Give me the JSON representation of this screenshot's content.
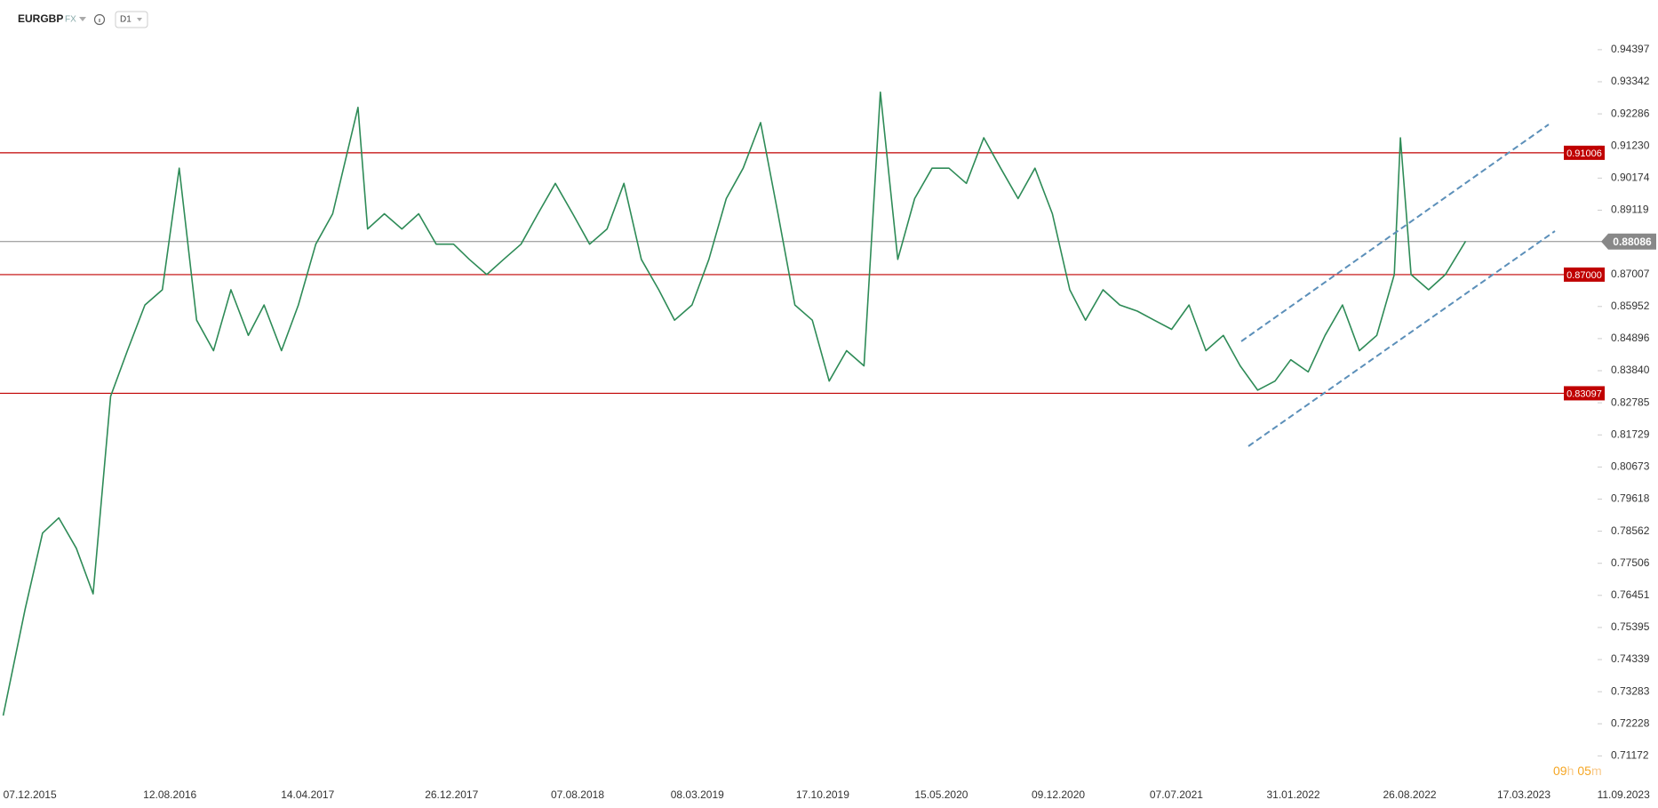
{
  "header": {
    "symbol": "EURGBP",
    "market": "FX",
    "interval": "D1"
  },
  "countdown": {
    "hours": "09",
    "hours_unit": "h",
    "minutes": "05",
    "minutes_unit": "m"
  },
  "chart_data": {
    "type": "line",
    "color": "#2e8b57",
    "x": [
      "07.12.2015",
      "15.01.2016",
      "15.02.2016",
      "15.03.2016",
      "15.04.2016",
      "15.05.2016",
      "15.06.2016",
      "15.07.2016",
      "15.08.2016",
      "15.09.2016",
      "15.10.2016",
      "15.11.2016",
      "15.12.2016",
      "15.01.2017",
      "15.02.2017",
      "15.03.2017",
      "15.04.2017",
      "15.05.2017",
      "15.06.2017",
      "15.07.2017",
      "29.08.2017",
      "15.09.2017",
      "15.10.2017",
      "15.11.2017",
      "15.12.2017",
      "15.01.2018",
      "15.02.2018",
      "15.03.2018",
      "15.04.2018",
      "15.05.2018",
      "15.06.2018",
      "15.07.2018",
      "15.08.2018",
      "15.09.2018",
      "15.10.2018",
      "15.11.2018",
      "15.12.2018",
      "15.01.2019",
      "15.02.2019",
      "15.03.2019",
      "15.04.2019",
      "15.05.2019",
      "15.06.2019",
      "15.07.2019",
      "15.08.2019",
      "15.09.2019",
      "15.10.2019",
      "15.11.2019",
      "15.12.2019",
      "15.01.2020",
      "15.02.2020",
      "15.03.2020",
      "15.04.2020",
      "15.05.2020",
      "15.06.2020",
      "15.07.2020",
      "15.08.2020",
      "15.09.2020",
      "15.10.2020",
      "15.11.2020",
      "15.12.2020",
      "15.01.2021",
      "15.02.2021",
      "15.03.2021",
      "15.04.2021",
      "15.05.2021",
      "15.06.2021",
      "15.07.2021",
      "15.08.2021",
      "15.09.2021",
      "15.10.2021",
      "15.11.2021",
      "15.12.2021",
      "15.01.2022",
      "15.02.2022",
      "15.03.2022",
      "15.04.2022",
      "15.05.2022",
      "15.06.2022",
      "15.07.2022",
      "15.08.2022",
      "15.09.2022",
      "26.09.2022",
      "15.10.2022",
      "15.11.2022",
      "15.12.2022",
      "20.01.2023"
    ],
    "values": [
      0.725,
      0.76,
      0.785,
      0.79,
      0.78,
      0.765,
      0.83,
      0.845,
      0.86,
      0.865,
      0.905,
      0.855,
      0.845,
      0.865,
      0.85,
      0.86,
      0.845,
      0.86,
      0.88,
      0.89,
      0.925,
      0.885,
      0.89,
      0.885,
      0.89,
      0.88,
      0.88,
      0.875,
      0.87,
      0.875,
      0.88,
      0.89,
      0.9,
      0.89,
      0.88,
      0.885,
      0.9,
      0.875,
      0.865,
      0.855,
      0.86,
      0.875,
      0.895,
      0.905,
      0.92,
      0.89,
      0.86,
      0.855,
      0.835,
      0.845,
      0.84,
      0.93,
      0.875,
      0.895,
      0.905,
      0.905,
      0.9,
      0.915,
      0.905,
      0.895,
      0.905,
      0.89,
      0.865,
      0.855,
      0.865,
      0.86,
      0.858,
      0.855,
      0.852,
      0.86,
      0.845,
      0.85,
      0.84,
      0.832,
      0.835,
      0.842,
      0.838,
      0.85,
      0.86,
      0.845,
      0.85,
      0.87,
      0.915,
      0.87,
      0.865,
      0.87,
      0.881
    ],
    "ylim": [
      0.7054,
      0.953
    ],
    "yticks": [
      0.94397,
      0.93342,
      0.92286,
      {
        "value": 0.9123,
        "label": "0.91230"
      },
      0.90174,
      0.89119,
      0.87007,
      0.85952,
      0.84896,
      {
        "value": 0.8384,
        "label": "0.83840"
      },
      0.82785,
      0.81729,
      0.80673,
      0.79618,
      0.78562,
      0.77506,
      0.76451,
      0.75395,
      0.74339,
      0.73283,
      0.72228,
      0.71172
    ],
    "xticks": [
      "07.12.2015",
      "12.08.2016",
      "14.04.2017",
      "26.12.2017",
      "07.08.2018",
      "08.03.2019",
      "17.10.2019",
      "15.05.2020",
      "09.12.2020",
      "07.07.2021",
      "31.01.2022",
      "26.08.2022",
      "17.03.2023",
      "11.09.2023"
    ],
    "levels": [
      {
        "value": 0.91006,
        "label": "0.91006"
      },
      {
        "value": 0.87,
        "label": "0.87000"
      },
      {
        "value": 0.83097,
        "label": "0.83097"
      }
    ],
    "level_color": "#c00000",
    "current_price": 0.88086
  }
}
